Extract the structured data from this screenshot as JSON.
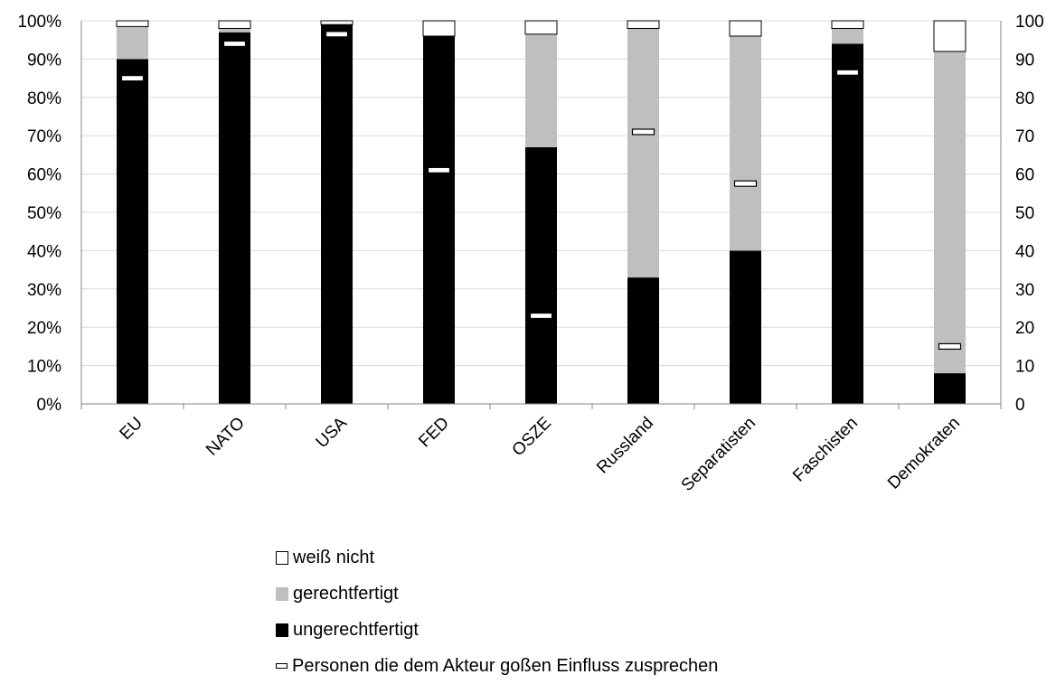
{
  "chart_data": {
    "type": "bar",
    "stacked": true,
    "categories": [
      "EU",
      "NATO",
      "USA",
      "FED",
      "OSZE",
      "Russland",
      "Separatisten",
      "Faschisten",
      "Demokraten"
    ],
    "series": [
      {
        "name": "ungerechtfertigt",
        "color": "#000000",
        "values": [
          90,
          97,
          99,
          96,
          67,
          33,
          40,
          94,
          8
        ]
      },
      {
        "name": "gerechtfertigt",
        "color": "#bfbfbf",
        "values": [
          8.5,
          1,
          0,
          0,
          29.5,
          65,
          56,
          4,
          84
        ]
      },
      {
        "name": "weiß nicht",
        "color": "#ffffff",
        "values": [
          1.5,
          2,
          1,
          4,
          3.5,
          2,
          4,
          2,
          8
        ]
      },
      {
        "name": "Personen die dem Akteur goßen Einfluss zusprechen",
        "type": "marker",
        "axis": "right",
        "values": [
          85,
          94,
          96.5,
          61,
          23,
          71,
          57.5,
          86.5,
          15
        ]
      }
    ],
    "y_left": {
      "ylim": [
        0,
        100
      ],
      "ticks": [
        "0%",
        "10%",
        "20%",
        "30%",
        "40%",
        "50%",
        "60%",
        "70%",
        "80%",
        "90%",
        "100%"
      ]
    },
    "y_right": {
      "ylim": [
        0,
        100
      ],
      "ticks": [
        "0",
        "10",
        "20",
        "30",
        "40",
        "50",
        "60",
        "70",
        "80",
        "90",
        "100"
      ]
    },
    "grid": true,
    "legend_position": "bottom"
  }
}
